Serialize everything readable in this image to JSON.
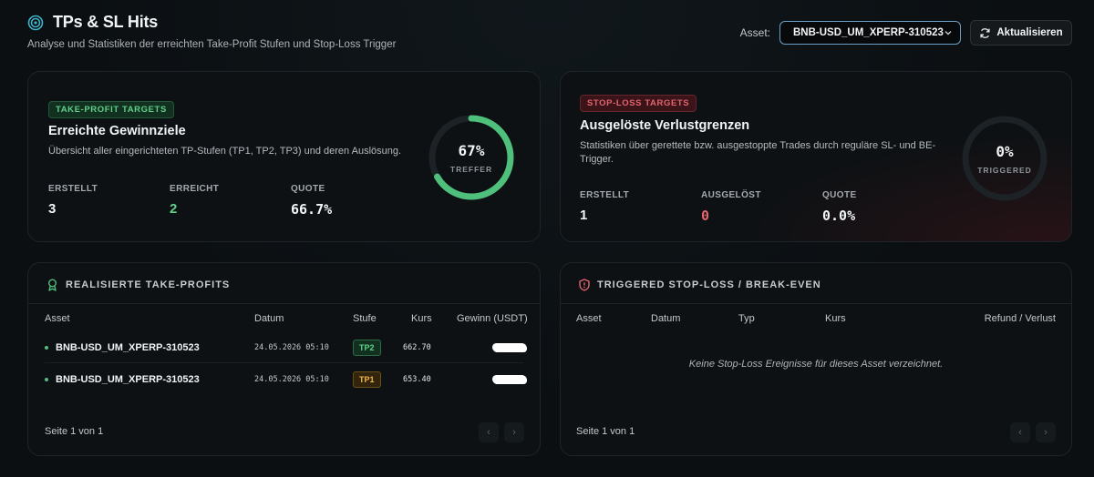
{
  "header": {
    "title": "TPs & SL Hits",
    "subtitle": "Analyse und Statistiken der erreichten Take-Profit Stufen und Stop-Loss Trigger",
    "icon": "target-icon"
  },
  "controls": {
    "asset_label": "Asset:",
    "asset_value": "BNB-USD_UM_XPERP-310523",
    "refresh_label": "Aktualisieren"
  },
  "tp_card": {
    "badge": "TAKE-PROFIT TARGETS",
    "title": "Erreichte Gewinnziele",
    "description": "Übersicht aller eingerichteten TP-Stufen (TP1, TP2, TP3) und deren Auslösung.",
    "stats": [
      {
        "label": "ERSTELLT",
        "value": "3"
      },
      {
        "label": "ERREICHT",
        "value": "2"
      },
      {
        "label": "QUOTE",
        "value": "66.7%"
      }
    ],
    "ring_percent": "67%",
    "ring_fraction": 0.667,
    "ring_label": "TREFFER",
    "accent": "#4fbf7c"
  },
  "sl_card": {
    "badge": "STOP-LOSS TARGETS",
    "title": "Ausgelöste Verlustgrenzen",
    "description": "Statistiken über gerettete bzw. ausgestoppte Trades durch reguläre SL- und BE-Trigger.",
    "stats": [
      {
        "label": "ERSTELLT",
        "value": "1"
      },
      {
        "label": "AUSGELÖST",
        "value": "0"
      },
      {
        "label": "QUOTE",
        "value": "0.0%"
      }
    ],
    "ring_percent": "0%",
    "ring_fraction": 0,
    "ring_label": "TRIGGERED",
    "accent": "#e4646f"
  },
  "tp_table": {
    "title": "REALISIERTE TAKE-PROFITS",
    "columns": [
      "Asset",
      "Datum",
      "Stufe",
      "Kurs",
      "Gewinn (USDT)"
    ],
    "rows": [
      {
        "asset": "BNB-USD_UM_XPERP-310523",
        "date": "24.05.2026 05:10",
        "stufe": "TP2",
        "kurs": "662.70"
      },
      {
        "asset": "BNB-USD_UM_XPERP-310523",
        "date": "24.05.2026 05:10",
        "stufe": "TP1",
        "kurs": "653.40"
      }
    ],
    "footer": "Seite 1 von 1"
  },
  "sl_table": {
    "title": "TRIGGERED STOP-LOSS / BREAK-EVEN",
    "columns": [
      "Asset",
      "Datum",
      "Typ",
      "Kurs",
      "Refund / Verlust"
    ],
    "empty_message": "Keine Stop-Loss Ereignisse für dieses Asset verzeichnet.",
    "footer": "Seite 1 von 1"
  }
}
